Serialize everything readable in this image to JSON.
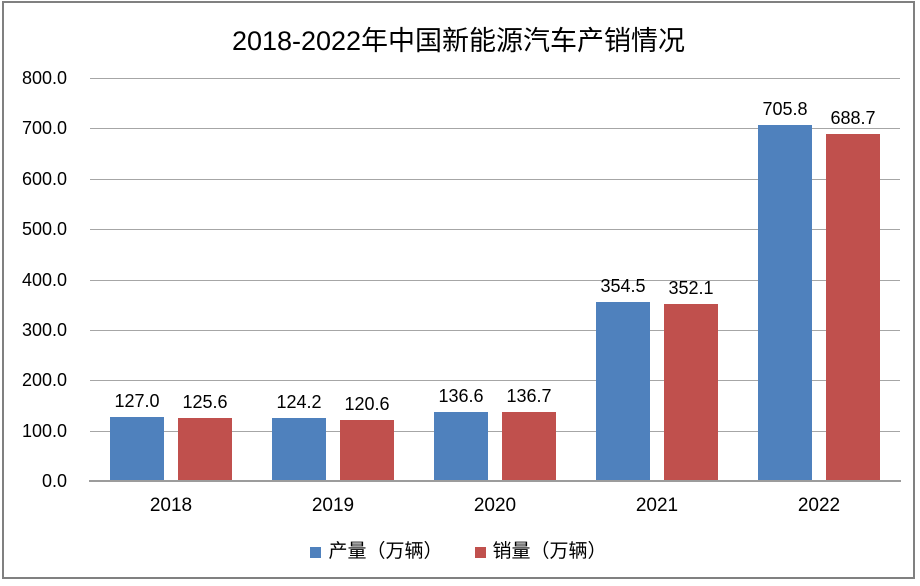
{
  "frame": {
    "border_color": "#808080",
    "background": "#ffffff"
  },
  "chart_data": {
    "type": "bar",
    "title": "2018-2022年中国新能源汽车产销情况",
    "categories": [
      "2018",
      "2019",
      "2020",
      "2021",
      "2022"
    ],
    "series": [
      {
        "name": "产量（万辆）",
        "color": "#4F81BD",
        "values": [
          127.0,
          124.2,
          136.6,
          354.5,
          705.8
        ],
        "labels": [
          "127.0",
          "124.2",
          "136.6",
          "354.5",
          "705.8"
        ]
      },
      {
        "name": "销量（万辆）",
        "color": "#C0504D",
        "values": [
          125.6,
          120.6,
          136.7,
          352.1,
          688.7
        ],
        "labels": [
          "125.6",
          "120.6",
          "136.7",
          "352.1",
          "688.7"
        ]
      }
    ],
    "xlabel": "",
    "ylabel": "",
    "ylim": [
      0,
      800
    ],
    "y_tick_step": 100,
    "y_tick_labels": [
      "0.0",
      "100.0",
      "200.0",
      "300.0",
      "400.0",
      "500.0",
      "600.0",
      "700.0",
      "800.0"
    ],
    "grid": true,
    "gridline_color": "#A6A6A6",
    "axis_line_color": "#9C9C9C",
    "text_color": "#000000",
    "data_labels_visible": true,
    "legend_position": "bottom"
  }
}
